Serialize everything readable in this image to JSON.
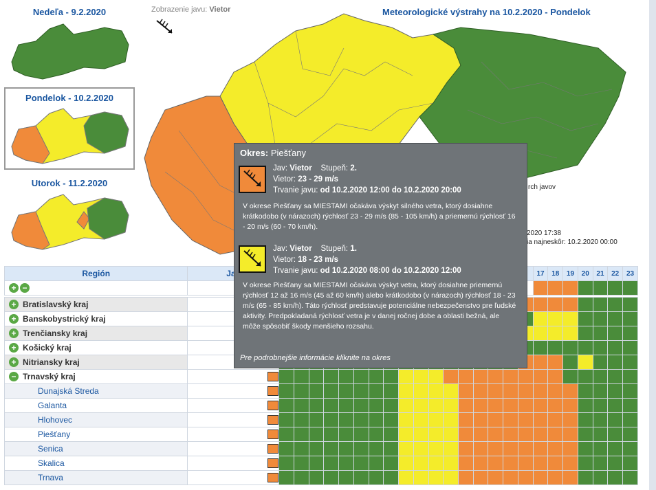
{
  "side": {
    "day1": "Nedeľa - 9.2.2020",
    "day2": "Pondelok - 10.2.2020",
    "day3": "Utorok - 11.2.2020"
  },
  "display_label": "Zobrazenie javu:",
  "display_value": "Vietor",
  "main_title": "Meteorologické výstrahy na 10.2.2020 - Pondelok",
  "behind": {
    "legend_frag": "rch javov",
    "time_frag": "2020 17:38",
    "valid_frag": "ia najneskôr: 10.2.2020 00:00"
  },
  "table": {
    "col_region": "Región",
    "col_jav": "Jav",
    "hours": [
      "17",
      "18",
      "19",
      "20",
      "21",
      "22",
      "23"
    ],
    "regions": [
      {
        "name": "Bratislavský kraj",
        "sign": "+"
      },
      {
        "name": "Banskobystrický kraj",
        "sign": "+"
      },
      {
        "name": "Trenčiansky kraj",
        "sign": "+"
      },
      {
        "name": "Košický kraj",
        "sign": "+"
      },
      {
        "name": "Nitriansky kraj",
        "sign": "+"
      },
      {
        "name": "Trnavský kraj",
        "sign": "−"
      }
    ],
    "districts": [
      "Dunajská Streda",
      "Galanta",
      "Hlohovec",
      "Piešťany",
      "Senica",
      "Skalica",
      "Trnava"
    ]
  },
  "tooltip": {
    "title_label": "Okres:",
    "title_value": "Piešťany",
    "w1": {
      "jav_label": "Jav:",
      "jav": "Vietor",
      "stupen_label": "Stupeň:",
      "stupen": "2.",
      "vietor_label": "Vietor:",
      "vietor": "23 - 29 m/s",
      "trvanie_label": "Trvanie javu:",
      "trvanie": "od 10.2.2020 12:00 do 10.2.2020 20:00",
      "text": "V okrese Piešťany sa MIESTAMI očakáva výskyt silného vetra, ktorý dosiahne krátkodobo (v nárazoch) rýchlosť 23 - 29 m/s (85 - 105 km/h) a priemernú rýchlosť 16 - 20 m/s (60 - 70 km/h)."
    },
    "w2": {
      "jav_label": "Jav:",
      "jav": "Vietor",
      "stupen_label": "Stupeň:",
      "stupen": "1.",
      "vietor_label": "Vietor:",
      "vietor": "18 - 23 m/s",
      "trvanie_label": "Trvanie javu:",
      "trvanie": "od 10.2.2020 08:00 do 10.2.2020 12:00",
      "text": "V okrese Piešťany sa MIESTAMI očakáva výskyt vetra, ktorý dosiahne priemernú rýchlosť 12 až 16 m/s (45 až 60 km/h) alebo krátkodobo (v nárazoch) rýchlosť 18 - 23 m/s (65 - 85 km/h). Táto rýchlosť predstavuje potenciálne nebezpečenstvo pre ľudské aktivity. Predpokladaná rýchlosť vetra je v danej ročnej dobe a oblasti bežná, ale môže spôsobiť škody menšieho rozsahu."
    },
    "footer": "Pre podrobnejšie informácie kliknite na okres"
  },
  "colors": {
    "green": "#4a8c3a",
    "yellow": "#f4ec2a",
    "orange": "#f08a3a"
  }
}
